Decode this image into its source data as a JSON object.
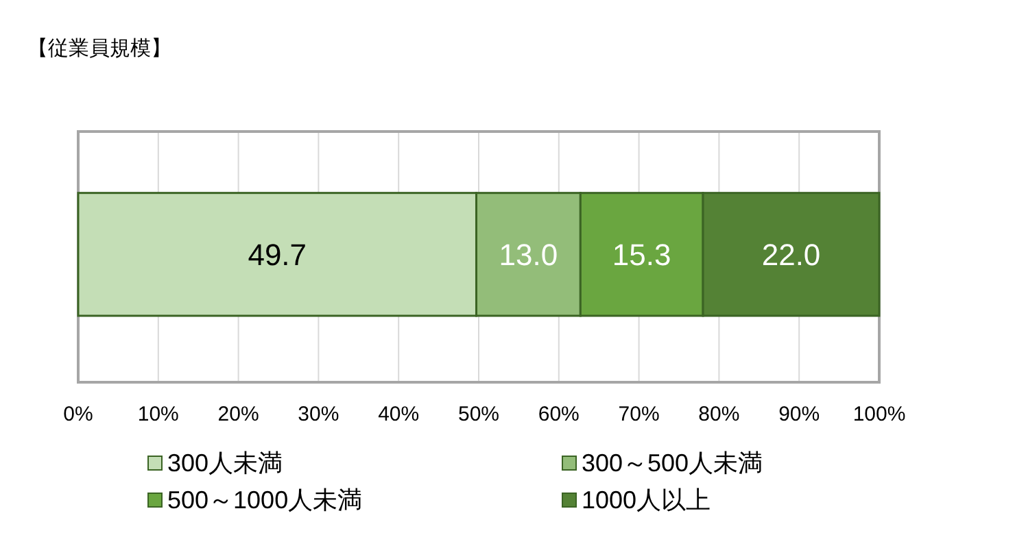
{
  "chart_data": {
    "type": "bar",
    "orientation": "horizontal",
    "stacked": true,
    "title": "【従業員規模】",
    "categories": [
      null
    ],
    "series": [
      {
        "name": "300人未満",
        "color": "#c4deb6",
        "values": [
          49.7
        ],
        "value_labels": [
          "49.7"
        ]
      },
      {
        "name": "300～500人未満",
        "color": "#93bd79",
        "values": [
          13.0
        ],
        "value_labels": [
          "13.0"
        ]
      },
      {
        "name": "500～1000人未満",
        "color": "#6aa640",
        "values": [
          15.3
        ],
        "value_labels": [
          "15.3"
        ]
      },
      {
        "name": "1000人以上",
        "color": "#548235",
        "values": [
          22.0
        ],
        "value_labels": [
          "22.0"
        ]
      }
    ],
    "xlim": [
      0,
      100
    ],
    "xticks": [
      {
        "value": 0,
        "label": "0%"
      },
      {
        "value": 10,
        "label": "10%"
      },
      {
        "value": 20,
        "label": "20%"
      },
      {
        "value": 30,
        "label": "30%"
      },
      {
        "value": 40,
        "label": "40%"
      },
      {
        "value": 50,
        "label": "50%"
      },
      {
        "value": 60,
        "label": "60%"
      },
      {
        "value": 70,
        "label": "70%"
      },
      {
        "value": 80,
        "label": "80%"
      },
      {
        "value": 90,
        "label": "90%"
      },
      {
        "value": 100,
        "label": "100%"
      }
    ],
    "grid": "x",
    "legend": "bottom"
  }
}
